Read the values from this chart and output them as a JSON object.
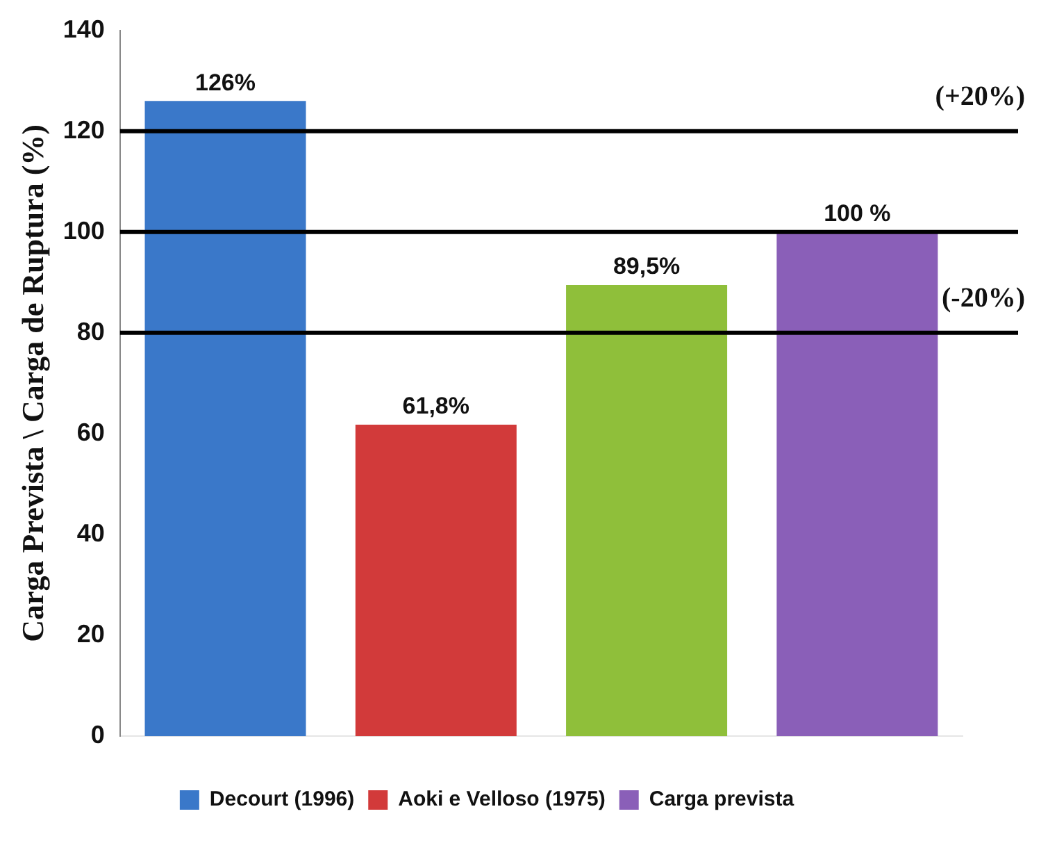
{
  "chart_data": {
    "type": "bar",
    "ylabel": "Carga Prevista \\ Carga de Ruptura (%)",
    "categories": [
      null,
      null,
      null,
      null
    ],
    "series": [
      {
        "name": "Decourt (1996)",
        "color": "#3a78c9",
        "values": [
          126,
          null,
          null,
          null
        ],
        "value_labels": [
          "126%",
          null,
          null,
          null
        ]
      },
      {
        "name": "Aoki e Velloso (1975)",
        "color": "#d23a3a",
        "values": [
          null,
          61.8,
          null,
          null
        ],
        "value_labels": [
          null,
          "61,8%",
          null,
          null
        ]
      },
      {
        "color": "#8fbf3a",
        "values": [
          null,
          null,
          89.5,
          null
        ],
        "value_labels": [
          null,
          null,
          "89,5%",
          null
        ]
      },
      {
        "name": "Carga prevista",
        "color": "#8a5fb8",
        "values": [
          null,
          null,
          null,
          100
        ],
        "value_labels": [
          null,
          null,
          null,
          "100 %"
        ]
      }
    ],
    "ylim": [
      0,
      140
    ],
    "yticks": [
      0,
      20,
      40,
      60,
      80,
      100,
      120,
      140
    ],
    "legend": "bottom",
    "ref_lines": [
      {
        "axis": "y",
        "value": 120,
        "color": "#000000"
      },
      {
        "axis": "y",
        "value": 100,
        "color": "#000000"
      },
      {
        "axis": "y",
        "value": 80,
        "color": "#000000"
      }
    ],
    "annotations": [
      "(+20%)",
      "(-20%)"
    ]
  }
}
